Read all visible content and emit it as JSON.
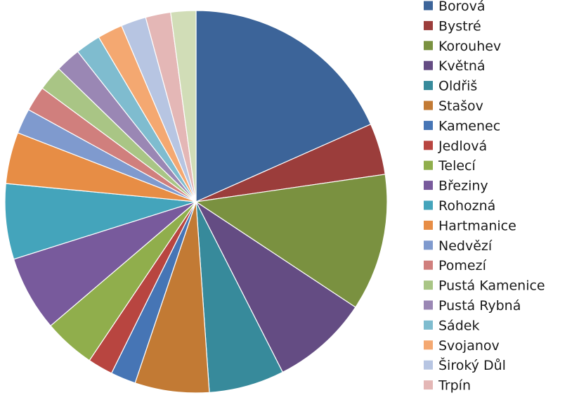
{
  "chart_data": {
    "type": "pie",
    "title": "",
    "legend_position": "right",
    "start_angle_deg": 0,
    "direction": "clockwise",
    "slices": [
      {
        "label": "Borová",
        "value": 19.0,
        "color": "#3C6499"
      },
      {
        "label": "Bystré",
        "value": 4.5,
        "color": "#9B3D3B"
      },
      {
        "label": "Korouhev",
        "value": 12.0,
        "color": "#7A9140"
      },
      {
        "label": "Květná",
        "value": 8.5,
        "color": "#644C83"
      },
      {
        "label": "Oldřiš",
        "value": 6.6,
        "color": "#378A9B"
      },
      {
        "label": "Stašov",
        "value": 6.5,
        "color": "#C27A34"
      },
      {
        "label": "Kamenec",
        "value": 2.2,
        "color": "#4675B5"
      },
      {
        "label": "Jedlová",
        "value": 2.2,
        "color": "#B84540"
      },
      {
        "label": "Telecí",
        "value": 4.5,
        "color": "#90AE4C"
      },
      {
        "label": "Březiny",
        "value": 6.6,
        "color": "#785A9C"
      },
      {
        "label": "Rohozná",
        "value": 6.6,
        "color": "#44A4BB"
      },
      {
        "label": "Hartmanice",
        "value": 4.5,
        "color": "#E78D45"
      },
      {
        "label": "Nedvězí",
        "value": 2.2,
        "color": "#7F9ACE"
      },
      {
        "label": "Pomezí",
        "value": 2.2,
        "color": "#D07F7D"
      },
      {
        "label": "Pustá Kamenice",
        "value": 2.2,
        "color": "#A9C585"
      },
      {
        "label": "Pustá Rybná",
        "value": 2.2,
        "color": "#9A87B4"
      },
      {
        "label": "Sádek",
        "value": 2.2,
        "color": "#7FBCCF"
      },
      {
        "label": "Svojanov",
        "value": 2.2,
        "color": "#F4A871"
      },
      {
        "label": "Široký Důl",
        "value": 2.2,
        "color": "#B7C5E2"
      },
      {
        "label": "Trpín",
        "value": 2.2,
        "color": "#E4B7B6"
      },
      {
        "label": "",
        "value": 2.2,
        "color": "#D1DDB7"
      }
    ]
  }
}
